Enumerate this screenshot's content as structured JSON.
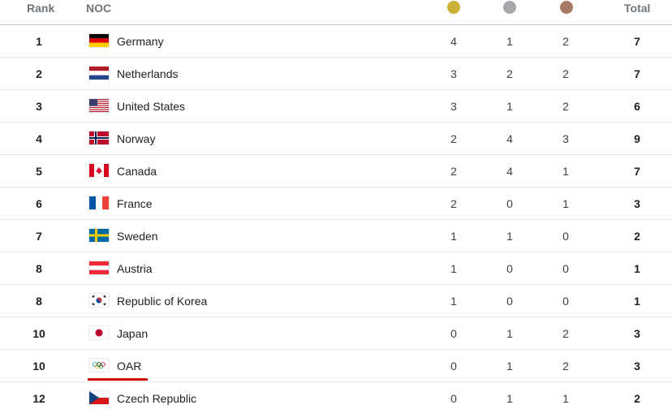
{
  "header": {
    "rank_label": "Rank",
    "noc_label": "NOC",
    "total_label": "Total",
    "medal_colors": {
      "gold": "#c9b037",
      "silver": "#a7a7ad",
      "bronze": "#a77b63"
    }
  },
  "rows": [
    {
      "rank": "1",
      "flag": "germany-flag-icon",
      "name": "Germany",
      "gold": "4",
      "silver": "1",
      "bronze": "2",
      "total": "7"
    },
    {
      "rank": "2",
      "flag": "netherlands-flag-icon",
      "name": "Netherlands",
      "gold": "3",
      "silver": "2",
      "bronze": "2",
      "total": "7"
    },
    {
      "rank": "3",
      "flag": "united-states-flag-icon",
      "name": "United States",
      "gold": "3",
      "silver": "1",
      "bronze": "2",
      "total": "6"
    },
    {
      "rank": "4",
      "flag": "norway-flag-icon",
      "name": "Norway",
      "gold": "2",
      "silver": "4",
      "bronze": "3",
      "total": "9"
    },
    {
      "rank": "5",
      "flag": "canada-flag-icon",
      "name": "Canada",
      "gold": "2",
      "silver": "4",
      "bronze": "1",
      "total": "7"
    },
    {
      "rank": "6",
      "flag": "france-flag-icon",
      "name": "France",
      "gold": "2",
      "silver": "0",
      "bronze": "1",
      "total": "3"
    },
    {
      "rank": "7",
      "flag": "sweden-flag-icon",
      "name": "Sweden",
      "gold": "1",
      "silver": "1",
      "bronze": "0",
      "total": "2"
    },
    {
      "rank": "8",
      "flag": "austria-flag-icon",
      "name": "Austria",
      "gold": "1",
      "silver": "0",
      "bronze": "0",
      "total": "1"
    },
    {
      "rank": "8",
      "flag": "korea-flag-icon",
      "name": "Republic of Korea",
      "gold": "1",
      "silver": "0",
      "bronze": "0",
      "total": "1"
    },
    {
      "rank": "10",
      "flag": "japan-flag-icon",
      "name": "Japan",
      "gold": "0",
      "silver": "1",
      "bronze": "2",
      "total": "3"
    },
    {
      "rank": "10",
      "flag": "olympic-rings-flag-icon",
      "name": "OAR",
      "gold": "0",
      "silver": "1",
      "bronze": "2",
      "total": "3"
    },
    {
      "rank": "12",
      "flag": "czech-republic-flag-icon",
      "name": "Czech Republic",
      "gold": "0",
      "silver": "1",
      "bronze": "1",
      "total": "2"
    }
  ]
}
